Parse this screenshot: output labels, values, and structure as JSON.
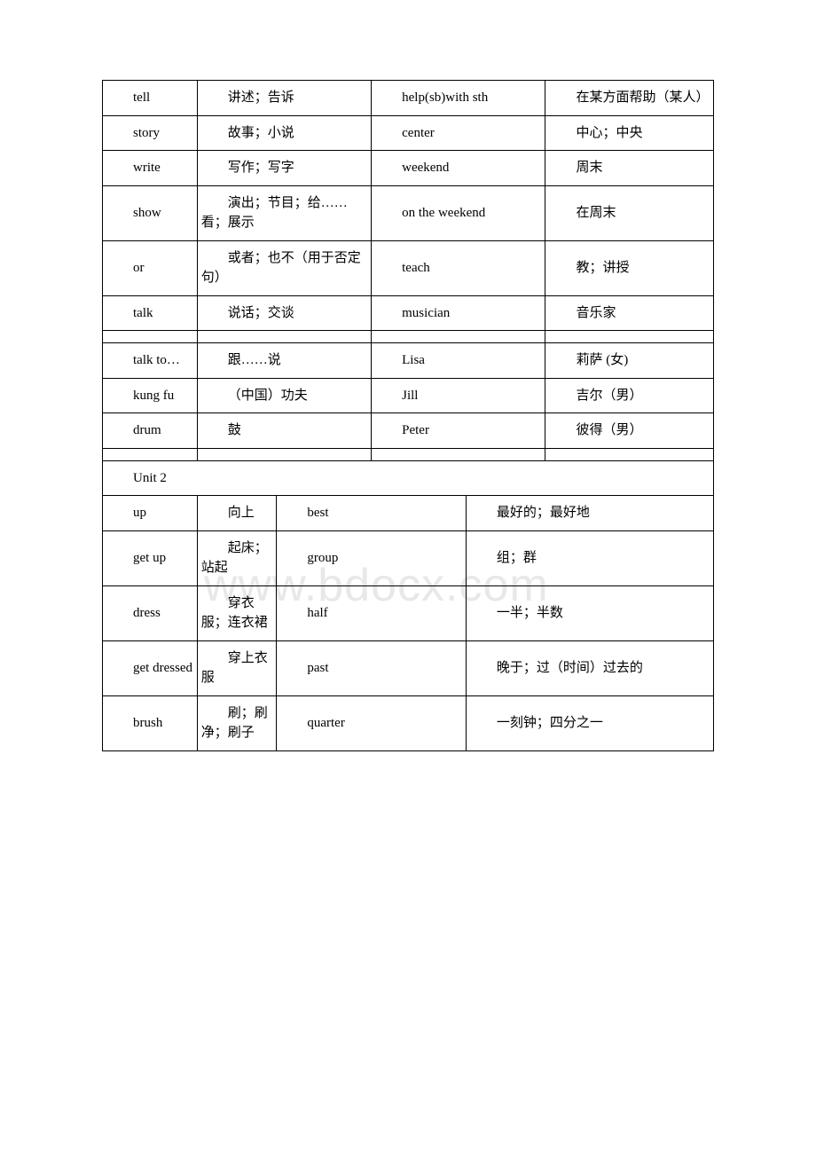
{
  "watermark": "www.bdocx.com",
  "table1": {
    "rows": [
      {
        "c1": "tell",
        "c2": "讲述；告诉",
        "c3": "help(sb)with sth",
        "c4": "在某方面帮助（某人）"
      },
      {
        "c1": "story",
        "c2": "故事；小说",
        "c3": "center",
        "c4": "中心；中央"
      },
      {
        "c1": "write",
        "c2": "写作；写字",
        "c3": "weekend",
        "c4": "周末"
      },
      {
        "c1": "show",
        "c2": "演出；节目；给……看；展示",
        "c3": "on the weekend",
        "c4": "在周末"
      },
      {
        "c1": "or",
        "c2": "或者；也不（用于否定句）",
        "c3": "teach",
        "c4": "教；讲授"
      },
      {
        "c1": "talk",
        "c2": "说话；交谈",
        "c3": "musician",
        "c4": "音乐家"
      }
    ],
    "rows2": [
      {
        "c1": "talk to…",
        "c2": "跟……说",
        "c3": "Lisa",
        "c4": "莉萨 (女)"
      },
      {
        "c1": "kung fu",
        "c2": "（中国）功夫",
        "c3": "Jill",
        "c4": "吉尔（男）"
      },
      {
        "c1": "drum",
        "c2": "鼓",
        "c3": "Peter",
        "c4": "彼得（男）"
      }
    ]
  },
  "unit2_label": "Unit 2",
  "table2": {
    "rows": [
      {
        "c1": "up",
        "c2": "向上",
        "c3": "best",
        "c4": "最好的；最好地"
      },
      {
        "c1": "get up",
        "c2": "起床；站起",
        "c3": "group",
        "c4": "组；群"
      },
      {
        "c1": "dress",
        "c2": "穿衣服；连衣裙",
        "c3": "half",
        "c4": "一半；半数"
      },
      {
        "c1": "get dressed",
        "c2": "穿上衣服",
        "c3": "past",
        "c4": "晚于；过（时间）过去的"
      },
      {
        "c1": "brush",
        "c2": "刷；刷净；刷子",
        "c3": "quarter",
        "c4": "一刻钟；四分之一"
      }
    ]
  }
}
